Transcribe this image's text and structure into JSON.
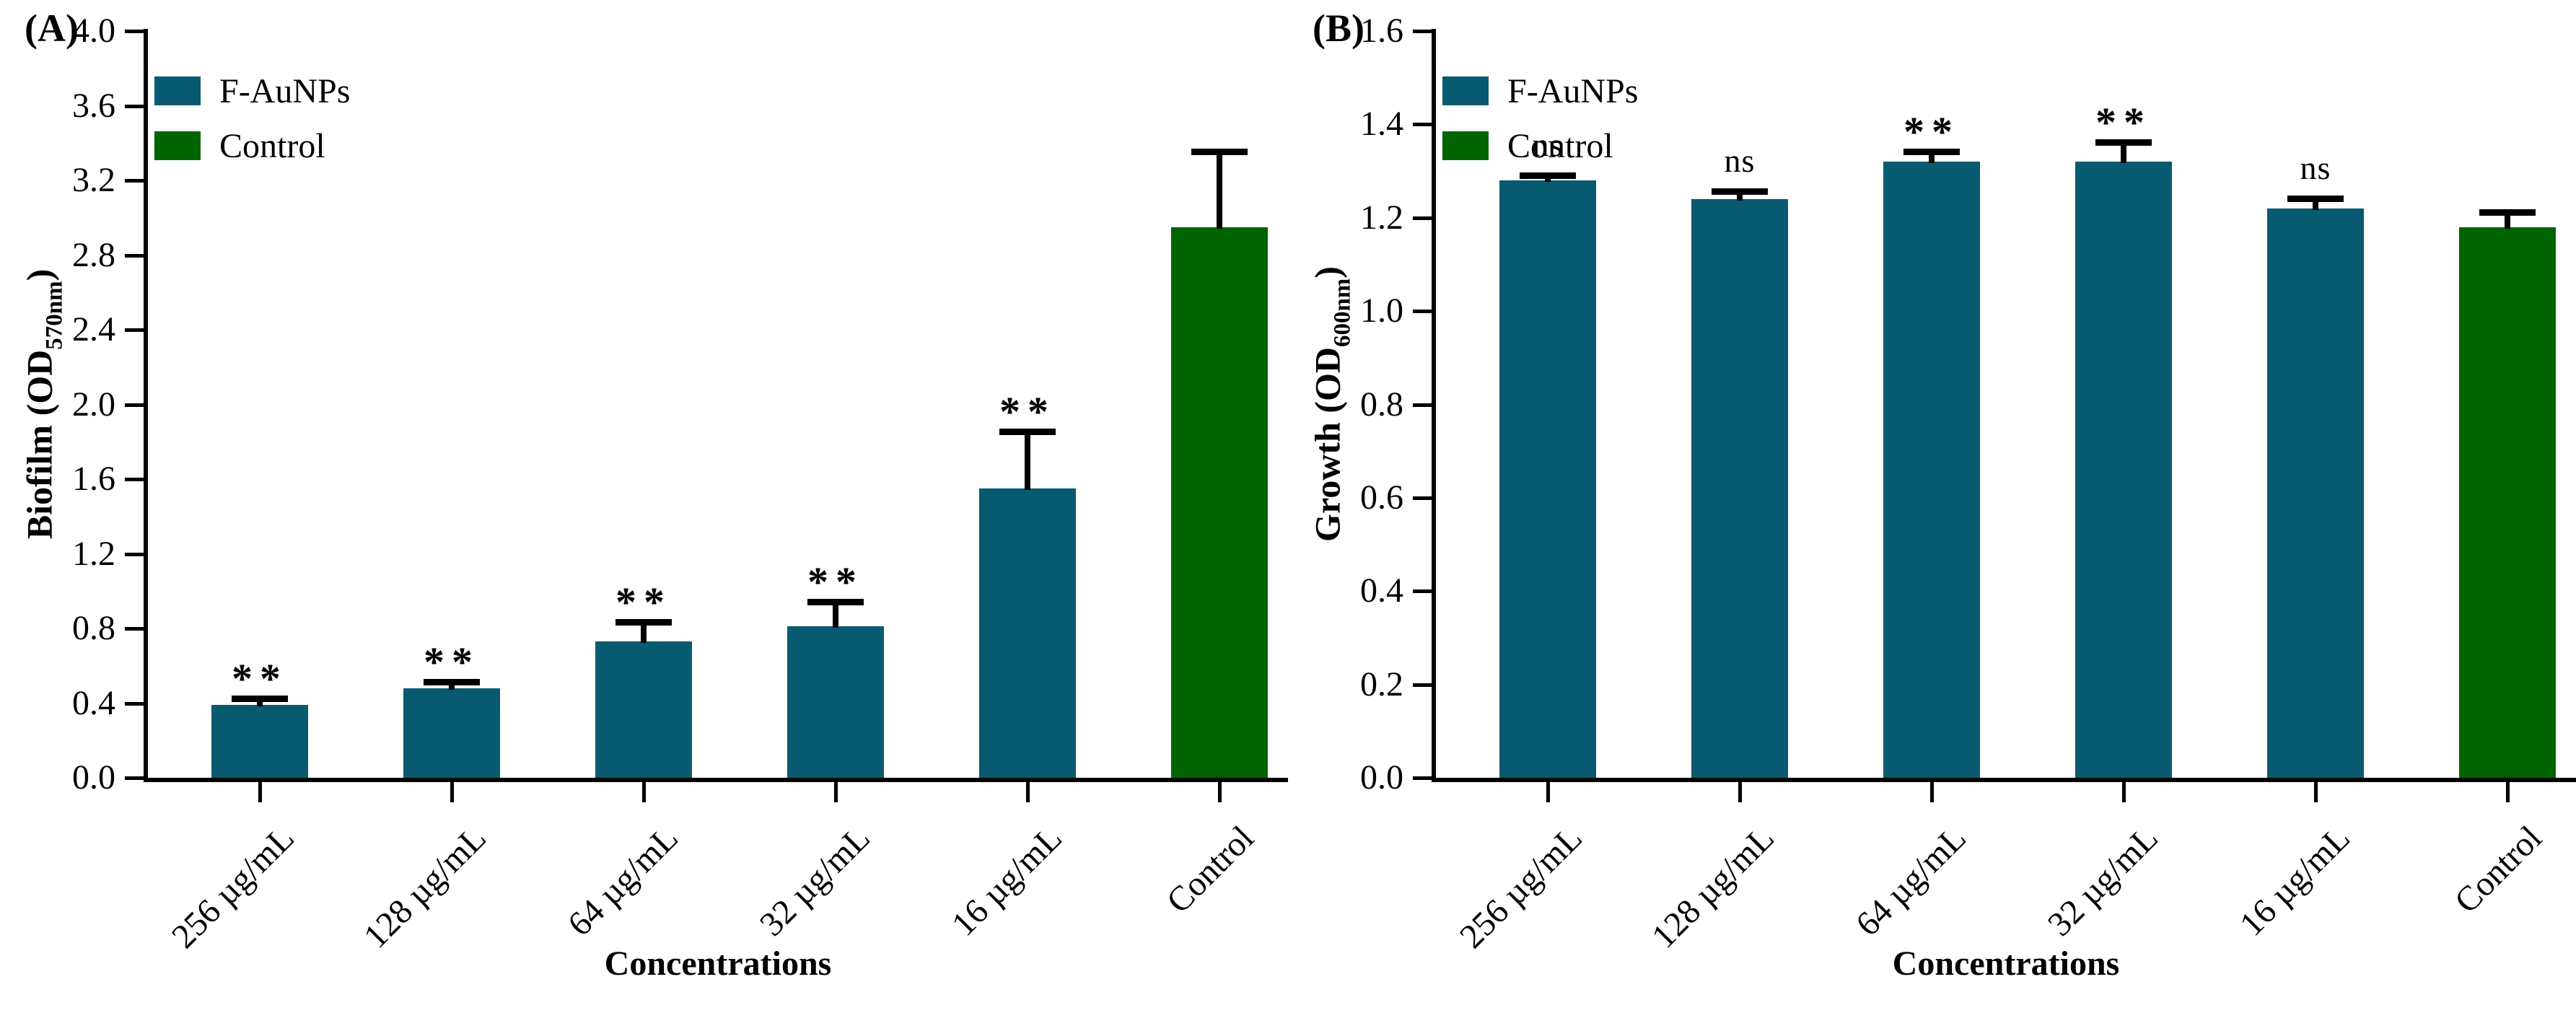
{
  "chart_data": [
    {
      "type": "bar",
      "panel_label": "(A)",
      "xlabel": "Concentrations",
      "ylabel_prefix": "Biofilm (OD",
      "ylabel_sub": "570nm",
      "ylabel_suffix": ")",
      "categories": [
        "256 µg/mL",
        "128 µg/mL",
        "64 µg/mL",
        "32 µg/mL",
        "16 µg/mL",
        "Control"
      ],
      "values": [
        0.39,
        0.48,
        0.73,
        0.81,
        1.55,
        2.95
      ],
      "errors": [
        0.03,
        0.03,
        0.1,
        0.13,
        0.3,
        0.4
      ],
      "significance": [
        "**",
        "**",
        "**",
        "**",
        "**",
        ""
      ],
      "bar_colors": [
        "#075a70",
        "#075a70",
        "#075a70",
        "#075a70",
        "#075a70",
        "#006400"
      ],
      "ylim": [
        0,
        4.0
      ],
      "ytick_step": 0.4,
      "ytick_labels": [
        "0.0",
        "0.4",
        "0.8",
        "1.2",
        "1.6",
        "2.0",
        "2.4",
        "2.8",
        "3.2",
        "3.6",
        "4.0"
      ],
      "grid": false,
      "legend_position": "upper-left",
      "legend": [
        {
          "label": "F-AuNPs",
          "color": "#075a70"
        },
        {
          "label": "Control",
          "color": "#006400"
        }
      ]
    },
    {
      "type": "bar",
      "panel_label": "(B)",
      "xlabel": "Concentrations",
      "ylabel_prefix": "Growth (OD",
      "ylabel_sub": "600nm",
      "ylabel_suffix": ")",
      "categories": [
        "256 µg/mL",
        "128 µg/mL",
        "64 µg/mL",
        "32 µg/mL",
        "16 µg/mL",
        "Control"
      ],
      "values": [
        1.28,
        1.24,
        1.32,
        1.32,
        1.22,
        1.18
      ],
      "errors": [
        0.01,
        0.015,
        0.02,
        0.04,
        0.02,
        0.03
      ],
      "significance": [
        "ns",
        "ns",
        "**",
        "**",
        "ns",
        ""
      ],
      "bar_colors": [
        "#075a70",
        "#075a70",
        "#075a70",
        "#075a70",
        "#075a70",
        "#006400"
      ],
      "ylim": [
        0,
        1.6
      ],
      "ytick_step": 0.2,
      "ytick_labels": [
        "0.0",
        "0.2",
        "0.4",
        "0.6",
        "0.8",
        "1.0",
        "1.2",
        "1.4",
        "1.6"
      ],
      "grid": false,
      "legend_position": "upper-left",
      "legend": [
        {
          "label": "F-AuNPs",
          "color": "#075a70"
        },
        {
          "label": "Control",
          "color": "#006400"
        }
      ]
    }
  ]
}
